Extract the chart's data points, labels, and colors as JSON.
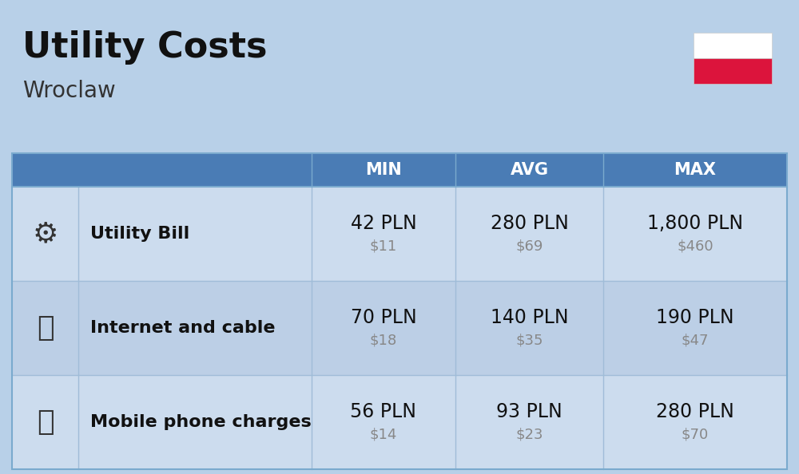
{
  "title": "Utility Costs",
  "subtitle": "Wroclaw",
  "background_color": "#b8d0e8",
  "header_bg_color": "#4a7cb5",
  "header_text_color": "#ffffff",
  "row_bg_colors": [
    "#ccdcee",
    "#bccfe6"
  ],
  "col_header_labels": [
    "MIN",
    "AVG",
    "MAX"
  ],
  "rows": [
    {
      "label": "Utility Bill",
      "icon": "utility",
      "min_pln": "42 PLN",
      "min_usd": "$11",
      "avg_pln": "280 PLN",
      "avg_usd": "$69",
      "max_pln": "1,800 PLN",
      "max_usd": "$460"
    },
    {
      "label": "Internet and cable",
      "icon": "internet",
      "min_pln": "70 PLN",
      "min_usd": "$18",
      "avg_pln": "140 PLN",
      "avg_usd": "$35",
      "max_pln": "190 PLN",
      "max_usd": "$47"
    },
    {
      "label": "Mobile phone charges",
      "icon": "mobile",
      "min_pln": "56 PLN",
      "min_usd": "$14",
      "avg_pln": "93 PLN",
      "avg_usd": "$23",
      "max_pln": "280 PLN",
      "max_usd": "$70"
    }
  ],
  "pln_fontsize": 17,
  "usd_fontsize": 13,
  "label_fontsize": 16,
  "header_fontsize": 15,
  "title_fontsize": 32,
  "subtitle_fontsize": 20,
  "usd_color": "#888888",
  "label_color": "#111111",
  "flag_white": "#ffffff",
  "flag_red": "#dc143c",
  "divider_color": "#a0bcd8",
  "border_color": "#7aaace"
}
